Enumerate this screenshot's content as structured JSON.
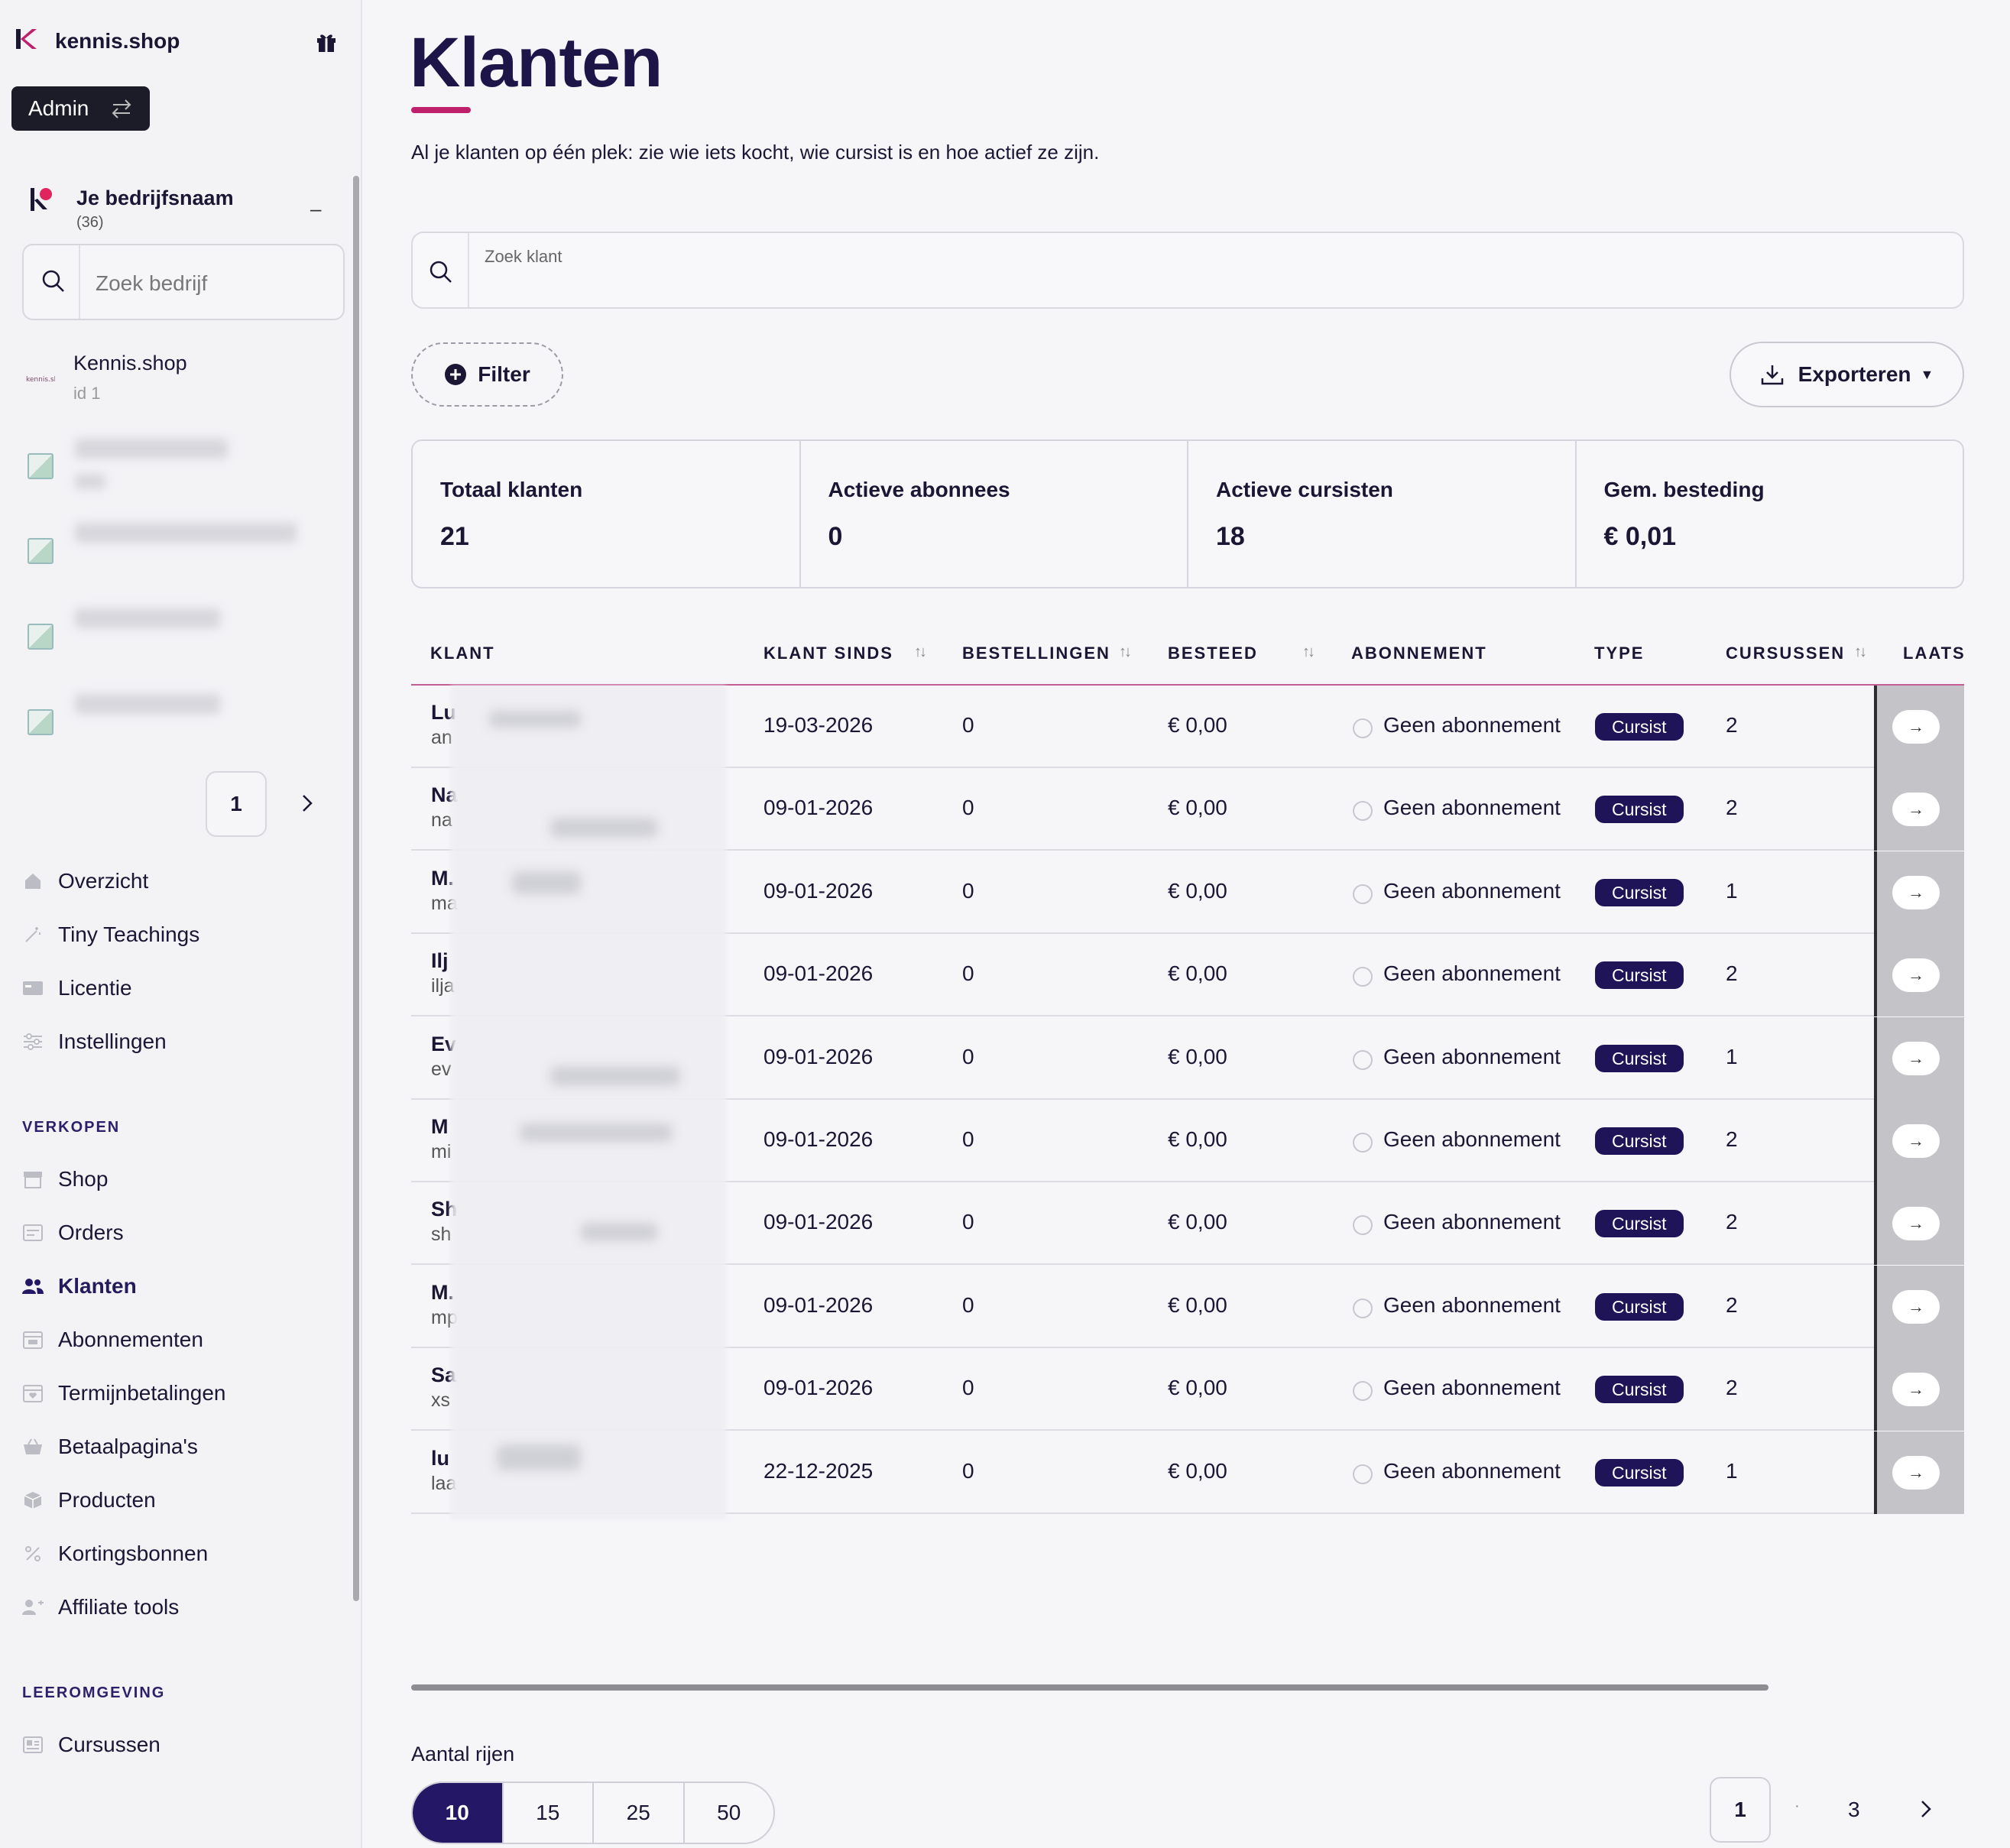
{
  "sidebar": {
    "brand": "kennis.shop",
    "admin_label": "Admin",
    "company": {
      "name": "Je bedrijfsnaam",
      "count": "(36)",
      "collapse": "–"
    },
    "search_placeholder": "Zoek bedrijf",
    "shop_item": {
      "name": "Kennis.shop",
      "id": "id 1",
      "logo_text": "kennis.shop"
    },
    "pagination_current": "1",
    "nav": [
      {
        "label": "Overzicht",
        "icon": "home-icon"
      },
      {
        "label": "Tiny Teachings",
        "icon": "sparkle-icon"
      },
      {
        "label": "Licentie",
        "icon": "license-icon"
      },
      {
        "label": "Instellingen",
        "icon": "settings-icon"
      }
    ],
    "section_sales": "VERKOPEN",
    "sales": [
      {
        "label": "Shop",
        "icon": "store-icon"
      },
      {
        "label": "Orders",
        "icon": "orders-icon"
      },
      {
        "label": "Klanten",
        "icon": "users-icon",
        "active": true
      },
      {
        "label": "Abonnementen",
        "icon": "subscription-icon"
      },
      {
        "label": "Termijnbetalingen",
        "icon": "installment-icon"
      },
      {
        "label": "Betaalpagina's",
        "icon": "basket-icon"
      },
      {
        "label": "Producten",
        "icon": "box-icon"
      },
      {
        "label": "Kortingsbonnen",
        "icon": "percent-icon"
      },
      {
        "label": "Affiliate tools",
        "icon": "affiliate-icon"
      }
    ],
    "section_learning": "LEEROMGEVING",
    "learning": [
      {
        "label": "Cursussen",
        "icon": "course-icon"
      }
    ]
  },
  "page": {
    "title": "Klanten",
    "subtitle": "Al je klanten op één plek: zie wie iets kocht, wie cursist is en hoe actief ze zijn.",
    "search_label": "Zoek klant",
    "filter_label": "Filter",
    "export_label": "Exporteren"
  },
  "stats": [
    {
      "label": "Totaal klanten",
      "value": "21"
    },
    {
      "label": "Actieve abonnees",
      "value": "0"
    },
    {
      "label": "Actieve cursisten",
      "value": "18"
    },
    {
      "label": "Gem. besteding",
      "value": "€ 0,01"
    }
  ],
  "table": {
    "headers": {
      "klant": "KLANT",
      "klant_sinds": "KLANT SINDS",
      "bestellingen": "BESTELLINGEN",
      "besteed": "BESTEED",
      "abonnement": "ABONNEMENT",
      "type": "TYPE",
      "cursussen": "CURSUSSEN",
      "laatst": "LAATS"
    },
    "rows": [
      {
        "name": "Lu",
        "email": "an",
        "since": "19-03-2026",
        "orders": "0",
        "spent": "€ 0,00",
        "subscription": "Geen abonnement",
        "type": "Cursist",
        "courses": "2"
      },
      {
        "name": "Na",
        "email": "na",
        "since": "09-01-2026",
        "orders": "0",
        "spent": "€ 0,00",
        "subscription": "Geen abonnement",
        "type": "Cursist",
        "courses": "2"
      },
      {
        "name": "M.",
        "email": "ma",
        "since": "09-01-2026",
        "orders": "0",
        "spent": "€ 0,00",
        "subscription": "Geen abonnement",
        "type": "Cursist",
        "courses": "1"
      },
      {
        "name": "Ilj",
        "email": "ilja",
        "since": "09-01-2026",
        "orders": "0",
        "spent": "€ 0,00",
        "subscription": "Geen abonnement",
        "type": "Cursist",
        "courses": "2"
      },
      {
        "name": "Ev",
        "email": "ev",
        "since": "09-01-2026",
        "orders": "0",
        "spent": "€ 0,00",
        "subscription": "Geen abonnement",
        "type": "Cursist",
        "courses": "1"
      },
      {
        "name": "M",
        "email": "mi",
        "since": "09-01-2026",
        "orders": "0",
        "spent": "€ 0,00",
        "subscription": "Geen abonnement",
        "type": "Cursist",
        "courses": "2"
      },
      {
        "name": "Sh",
        "email": "sh",
        "since": "09-01-2026",
        "orders": "0",
        "spent": "€ 0,00",
        "subscription": "Geen abonnement",
        "type": "Cursist",
        "courses": "2"
      },
      {
        "name": "M.",
        "email": "mp",
        "since": "09-01-2026",
        "orders": "0",
        "spent": "€ 0,00",
        "subscription": "Geen abonnement",
        "type": "Cursist",
        "courses": "2"
      },
      {
        "name": "Sa",
        "email": "xs",
        "since": "09-01-2026",
        "orders": "0",
        "spent": "€ 0,00",
        "subscription": "Geen abonnement",
        "type": "Cursist",
        "courses": "2"
      },
      {
        "name": "lu",
        "email": "laa",
        "since": "22-12-2025",
        "orders": "0",
        "spent": "€ 0,00",
        "subscription": "Geen abonnement",
        "type": "Cursist",
        "courses": "1"
      }
    ]
  },
  "footer": {
    "rows_label": "Aantal rijen",
    "rows_options": [
      "10",
      "15",
      "25",
      "50"
    ],
    "rows_selected": "10",
    "page_current": "1",
    "page_sep": "·",
    "page_last": "3"
  },
  "colors": {
    "accent": "#c01f6b",
    "primary": "#241866",
    "badge": "#1f1457"
  }
}
